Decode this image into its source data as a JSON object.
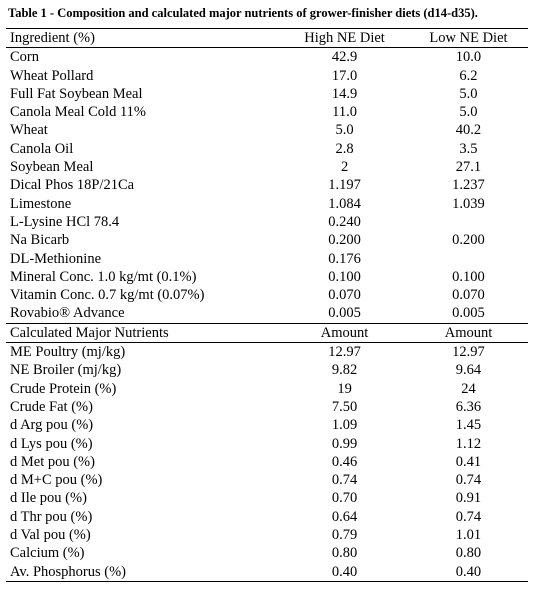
{
  "caption": "Table 1 - Composition and calculated major nutrients of grower-finisher diets (d14-d35).",
  "headers": {
    "ingredient": "Ingredient (%)",
    "high": "High NE Diet",
    "low": "Low NE Diet"
  },
  "ingredients": [
    {
      "name": "Corn",
      "high": "42.9",
      "low": "10.0"
    },
    {
      "name": "Wheat Pollard",
      "high": "17.0",
      "low": "6.2"
    },
    {
      "name": "Full Fat Soybean Meal",
      "high": "14.9",
      "low": "5.0"
    },
    {
      "name": "Canola Meal Cold 11%",
      "high": "11.0",
      "low": "5.0"
    },
    {
      "name": "Wheat",
      "high": "5.0",
      "low": "40.2"
    },
    {
      "name": "Canola Oil",
      "high": "2.8",
      "low": "3.5"
    },
    {
      "name": "Soybean Meal",
      "high": "2",
      "low": "27.1"
    },
    {
      "name": "Dical Phos 18P/21Ca",
      "high": "1.197",
      "low": "1.237"
    },
    {
      "name": "Limestone",
      "high": "1.084",
      "low": "1.039"
    },
    {
      "name": "L-Lysine HCl 78.4",
      "high": "0.240",
      "low": ""
    },
    {
      "name": "Na Bicarb",
      "high": "0.200",
      "low": "0.200"
    },
    {
      "name": "DL-Methionine",
      "high": "0.176",
      "low": ""
    },
    {
      "name": "Mineral Conc. 1.0 kg/mt (0.1%)",
      "high": "0.100",
      "low": "0.100"
    },
    {
      "name": "Vitamin Conc. 0.7 kg/mt (0.07%)",
      "high": "0.070",
      "low": "0.070"
    },
    {
      "name": "Rovabio® Advance",
      "high": "0.005",
      "low": "0.005"
    }
  ],
  "nutrient_headers": {
    "name": "Calculated Major Nutrients",
    "high": "Amount",
    "low": "Amount"
  },
  "nutrients": [
    {
      "name": "ME Poultry (mj/kg)",
      "high": "12.97",
      "low": "12.97"
    },
    {
      "name": "NE Broiler (mj/kg)",
      "high": "9.82",
      "low": "9.64"
    },
    {
      "name": "Crude Protein (%)",
      "high": "19",
      "low": "24"
    },
    {
      "name": "Crude Fat (%)",
      "high": "7.50",
      "low": "6.36"
    },
    {
      "name": "d Arg pou (%)",
      "high": "1.09",
      "low": "1.45"
    },
    {
      "name": "d Lys pou (%)",
      "high": "0.99",
      "low": "1.12"
    },
    {
      "name": "d Met pou (%)",
      "high": "0.46",
      "low": "0.41"
    },
    {
      "name": "d M+C pou (%)",
      "high": "0.74",
      "low": "0.74"
    },
    {
      "name": "d Ile pou (%)",
      "high": "0.70",
      "low": "0.91"
    },
    {
      "name": "d Thr pou (%)",
      "high": "0.64",
      "low": "0.74"
    },
    {
      "name": "d Val pou (%)",
      "high": "0.79",
      "low": "1.01"
    },
    {
      "name": "Calcium (%)",
      "high": "0.80",
      "low": "0.80"
    },
    {
      "name": "Av. Phosphorus (%)",
      "high": "0.40",
      "low": "0.40"
    }
  ]
}
